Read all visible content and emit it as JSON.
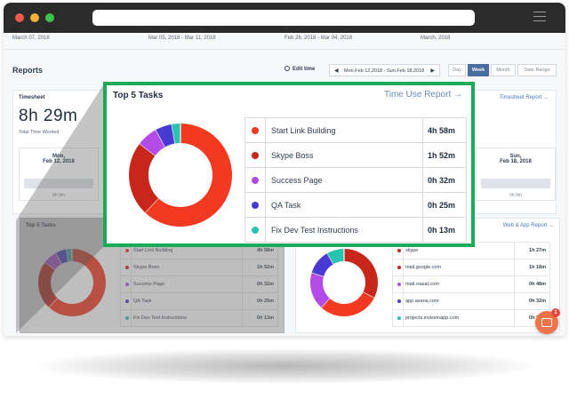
{
  "dates": [
    "March 07, 2018",
    "Mar 05, 2018 - Mar 11, 2018",
    "Feb 26, 2018 - Mar 04, 2018",
    "March, 2018"
  ],
  "reports": {
    "title": "Reports",
    "edit_time": "Edit time",
    "range": "Mon,Feb 12,2018 - Sun,Feb 18,2018",
    "views": [
      "Day",
      "Week",
      "Month",
      "Date Range"
    ],
    "active_view": "Week"
  },
  "timesheet": {
    "label": "Timesheet",
    "link": "Timesheet Report →",
    "total": "8h 29m",
    "total_label": "Total Time Worked",
    "days": [
      {
        "d1": "Mon,",
        "d2": "Feb 12, 2018",
        "hrs": "0h 0m"
      },
      {
        "d1": "Sun,",
        "d2": "Feb 18, 2018",
        "hrs": "0h 0m"
      }
    ]
  },
  "top_tasks": {
    "title": "Top 5 Tasks",
    "link": "Time Use Report →",
    "tasks": [
      {
        "name": "Start Link Building",
        "hours": "4h 58m",
        "minutes": 298,
        "color": "#f23a22"
      },
      {
        "name": "Skype Boss",
        "hours": "1h 52m",
        "minutes": 112,
        "color": "#c8261a"
      },
      {
        "name": "Success Page",
        "hours": "0h 32m",
        "minutes": 32,
        "color": "#b44be6"
      },
      {
        "name": "QA Task",
        "hours": "0h 25m",
        "minutes": 25,
        "color": "#4a3ad4"
      },
      {
        "name": "Fix Dev Test Instructions",
        "hours": "0h 13m",
        "minutes": 13,
        "color": "#27c4b0"
      }
    ]
  },
  "web_app": {
    "link": "Web & App Report →",
    "apps": [
      {
        "name": "skype",
        "hours": "1h 27m",
        "color": "#c8261a"
      },
      {
        "name": "mail.google.com",
        "hours": "1h 18m",
        "color": "#c8261a"
      },
      {
        "name": "mail.viasat.com",
        "hours": "0h 48m",
        "color": "#b44be6"
      },
      {
        "name": "app.asana.com",
        "hours": "0h 32m",
        "color": "#4a3ad4"
      },
      {
        "name": "projects.invisionapp.com",
        "hours": "0h 22m",
        "color": "#27c4b0"
      }
    ],
    "donut": [
      {
        "minutes": 87,
        "color": "#c8261a"
      },
      {
        "minutes": 78,
        "color": "#f23a22"
      },
      {
        "minutes": 48,
        "color": "#b44be6"
      },
      {
        "minutes": 32,
        "color": "#4a3ad4"
      },
      {
        "minutes": 22,
        "color": "#27c4b0"
      }
    ]
  },
  "chat_badge": "1"
}
